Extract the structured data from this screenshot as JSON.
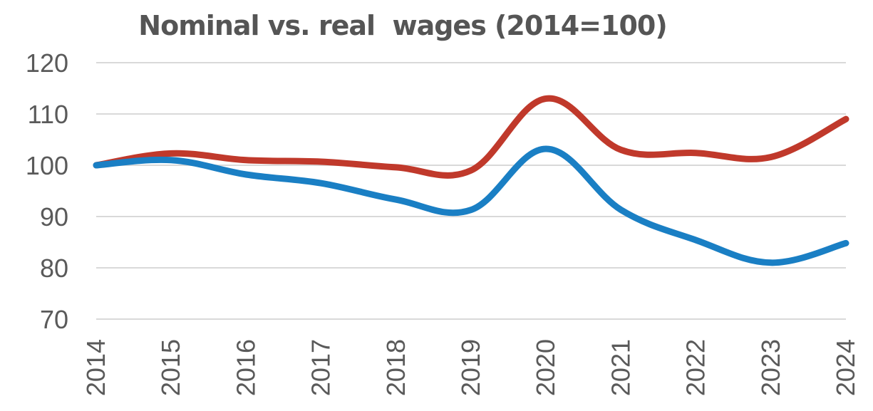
{
  "chart_data": {
    "type": "line",
    "title": "Nominal vs. real  wages (2014=100)",
    "xlabel": "",
    "ylabel": "",
    "categories": [
      "2014",
      "2015",
      "2016",
      "2017",
      "2018",
      "2019",
      "2020",
      "2021",
      "2022",
      "2023",
      "2024"
    ],
    "ylim": [
      70,
      120
    ],
    "yticks": [
      70,
      80,
      90,
      100,
      110,
      120
    ],
    "grid": true,
    "legend": "none",
    "series": [
      {
        "color": "#c0392b",
        "values": [
          100,
          102.3,
          101,
          100.7,
          99.6,
          99,
          113,
          103,
          102.4,
          101.6,
          109
        ]
      },
      {
        "color": "#1a7fc4",
        "values": [
          100,
          101,
          98.2,
          96.5,
          93.3,
          91.3,
          103.2,
          91.3,
          85.4,
          81,
          84.8
        ]
      }
    ]
  }
}
